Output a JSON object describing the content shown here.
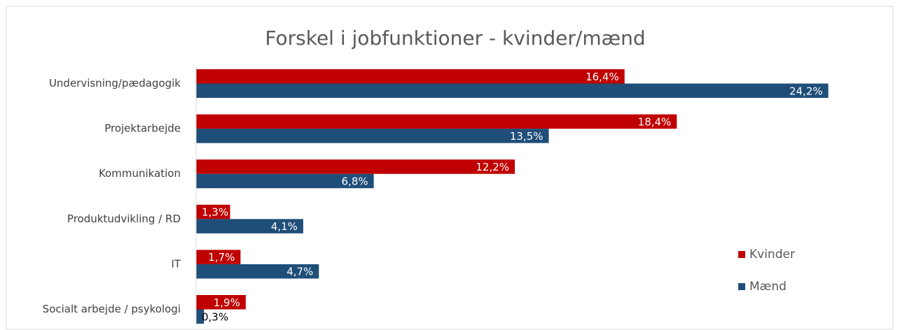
{
  "chart_data": {
    "type": "bar",
    "orientation": "horizontal",
    "title": "Forskel i jobfunktioner - kvinder/mænd",
    "categories": [
      "Undervisning/pædagogik",
      "Projektarbejde",
      "Kommunikation",
      "Produktudvikling / RD",
      "IT",
      "Socialt arbejde / psykologi"
    ],
    "series": [
      {
        "name": "Kvinder",
        "color": "#c00000",
        "values": [
          16.4,
          18.4,
          12.2,
          1.3,
          1.7,
          1.9
        ],
        "value_labels": [
          "16,4%",
          "18,4%",
          "12,2%",
          "1,3%",
          "1,7%",
          "1,9%"
        ]
      },
      {
        "name": "Mænd",
        "color": "#1f4e79",
        "values": [
          24.2,
          13.5,
          6.8,
          4.1,
          4.7,
          0.3
        ],
        "value_labels": [
          "24,2%",
          "13,5%",
          "6,8%",
          "4,1%",
          "4,7%",
          "0,3%"
        ]
      }
    ],
    "legend": "right"
  }
}
